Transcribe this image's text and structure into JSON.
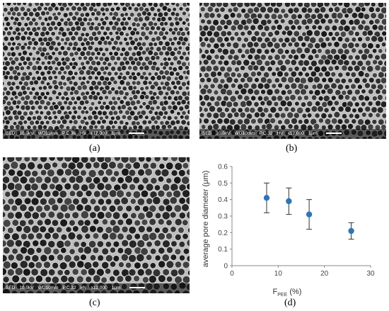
{
  "panels": [
    {
      "label": "(a)",
      "sem": {
        "mode": "SED",
        "voltage": "10.0kV",
        "wd": "WD11mm",
        "pc": "P.C.36",
        "hv": "HV",
        "mag": "x12,000",
        "scale": "1μm"
      }
    },
    {
      "label": "(b)",
      "sem": {
        "mode": "SED",
        "voltage": "10.0kV",
        "wd": "WD10mm",
        "pc": "P.C.32",
        "hv": "HV",
        "mag": "x12,000",
        "scale": "1μm"
      }
    },
    {
      "label": "(c)",
      "sem": {
        "mode": "SED",
        "voltage": "10.0kV",
        "wd": "WD10mm",
        "pc": "P.C.32",
        "hv": "HV",
        "mag": "x12,000",
        "scale": "1μm"
      }
    },
    {
      "label": "(d)"
    }
  ],
  "chart_data": {
    "type": "scatter",
    "xlabel_main": "F",
    "xlabel_sub": "PEE",
    "xlabel_unit": " (%)",
    "ylabel": "average pore diameter (μm)",
    "xlim": [
      0,
      30
    ],
    "ylim": [
      0,
      0.6
    ],
    "xticks": [
      0,
      10,
      20,
      30
    ],
    "yticks": [
      0,
      0.1,
      0.2,
      0.3,
      0.4,
      0.5,
      0.6
    ],
    "marker_color": "#2e75b6",
    "grid": false,
    "x": [
      7.5,
      12.3,
      16.7,
      25.8
    ],
    "y": [
      0.41,
      0.39,
      0.31,
      0.21
    ],
    "error": [
      0.09,
      0.08,
      0.09,
      0.05
    ]
  }
}
